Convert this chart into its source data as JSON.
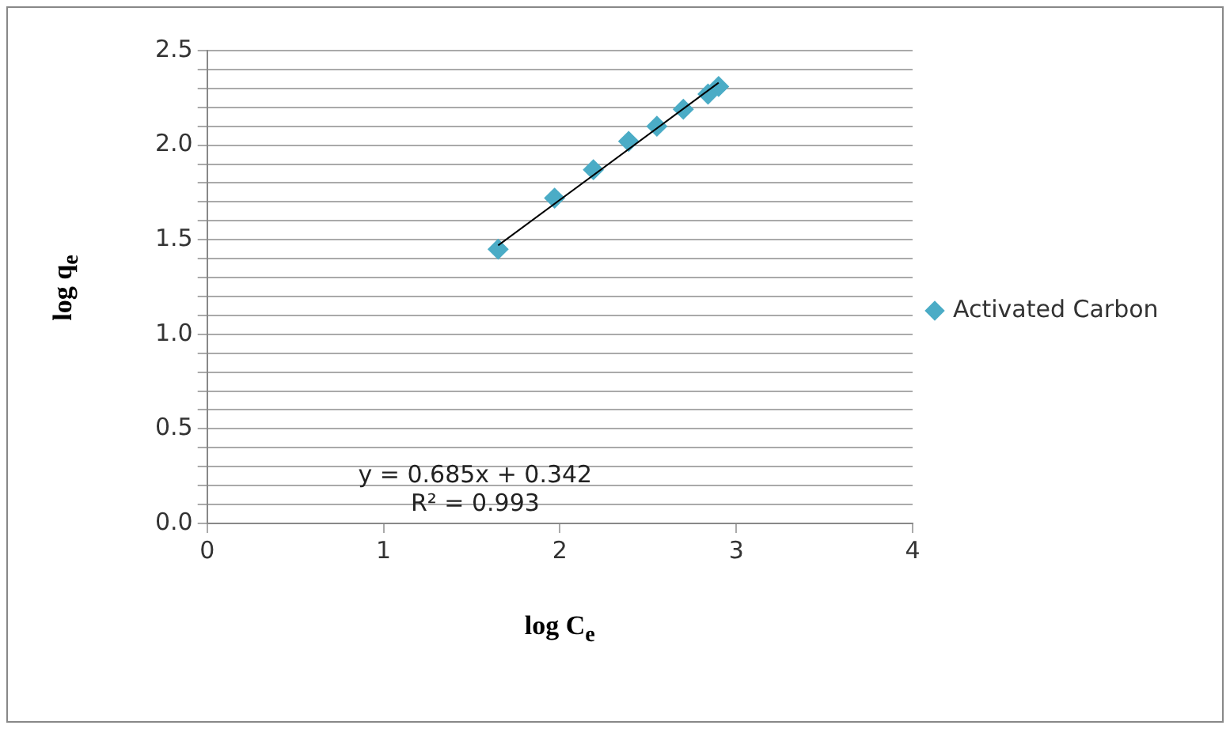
{
  "chart_data": {
    "type": "scatter",
    "xlabel": "log C$_{e}$",
    "ylabel": "log q$_{e}$",
    "series": [
      {
        "name": "Activated Carbon",
        "marker": "diamond",
        "color": "#4bacc6",
        "x": [
          1.65,
          1.97,
          2.19,
          2.39,
          2.55,
          2.7,
          2.84,
          2.9
        ],
        "values": [
          1.45,
          1.72,
          1.87,
          2.02,
          2.1,
          2.19,
          2.27,
          2.31
        ]
      },
      {
        "type": "line",
        "marker": "none",
        "color": "#000000",
        "x": [
          1.65,
          2.9
        ],
        "values": [
          1.47,
          2.33
        ]
      }
    ],
    "xlim": [
      0,
      4
    ],
    "xticks": [
      0,
      1,
      2,
      3,
      4
    ],
    "ylim": [
      0,
      2.5
    ],
    "yticks": [
      "0.0",
      {
        "value": 0.1,
        "label": null
      },
      {
        "value": 0.2,
        "label": null
      },
      {
        "value": 0.3,
        "label": null
      },
      {
        "value": 0.4,
        "label": null
      },
      {
        "value": 0.5,
        "label": "0.5"
      },
      {
        "value": 0.6,
        "label": null
      },
      {
        "value": 0.7,
        "label": null
      },
      {
        "value": 0.8,
        "label": null
      },
      {
        "value": 0.9,
        "label": null
      },
      {
        "value": 1.0,
        "label": "1.0"
      },
      {
        "value": 1.1,
        "label": null
      },
      {
        "value": 1.2,
        "label": null
      },
      {
        "value": 1.3,
        "label": null
      },
      {
        "value": 1.4,
        "label": null
      },
      {
        "value": 1.5,
        "label": "1.5"
      },
      {
        "value": 1.6,
        "label": null
      },
      {
        "value": 1.7,
        "label": null
      },
      {
        "value": 1.8,
        "label": null
      },
      {
        "value": 1.9,
        "label": null
      },
      {
        "value": 2.0,
        "label": "2.0"
      },
      {
        "value": 2.1,
        "label": null
      },
      {
        "value": 2.2,
        "label": null
      },
      {
        "value": 2.3,
        "label": null
      },
      {
        "value": 2.4,
        "label": null
      },
      {
        "value": 2.5,
        "label": "2.5"
      }
    ],
    "grid": "y",
    "legend": "right",
    "annotations": [
      "y = 0.685x + 0.342",
      "R² = 0.993"
    ]
  }
}
